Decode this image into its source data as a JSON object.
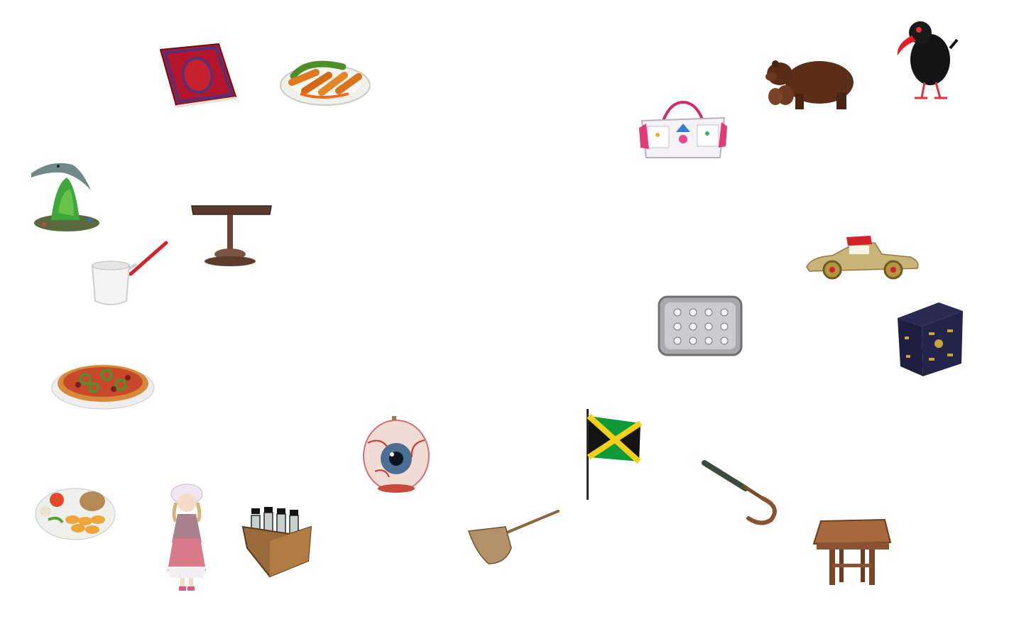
{
  "scene": {
    "objects": [
      {
        "id": "book",
        "icon": "red-book-icon"
      },
      {
        "id": "sausage-plate",
        "icon": "sausage-plate-icon"
      },
      {
        "id": "diaper-bag",
        "icon": "diaper-bag-icon"
      },
      {
        "id": "bear",
        "icon": "bear-with-cubs-icon"
      },
      {
        "id": "bird",
        "icon": "black-bird-icon"
      },
      {
        "id": "dolphin-figurine",
        "icon": "dolphin-figurine-icon"
      },
      {
        "id": "desk-lamp",
        "icon": "desk-lamp-icon"
      },
      {
        "id": "coffee-pot",
        "icon": "turkish-coffee-pot-icon"
      },
      {
        "id": "toy-car",
        "icon": "vintage-toy-car-icon"
      },
      {
        "id": "soap-dish",
        "icon": "soap-dish-icon"
      },
      {
        "id": "jewelry-chest",
        "icon": "jewelry-chest-icon"
      },
      {
        "id": "pizza",
        "icon": "pizza-icon"
      },
      {
        "id": "eyeball-model",
        "icon": "eyeball-model-icon"
      },
      {
        "id": "jamaica-flag",
        "icon": "jamaica-flag-icon"
      },
      {
        "id": "umbrella",
        "icon": "umbrella-icon"
      },
      {
        "id": "seafood-plate",
        "icon": "seafood-plate-icon"
      },
      {
        "id": "doll",
        "icon": "porcelain-doll-icon"
      },
      {
        "id": "bottle-crate",
        "icon": "bottle-crate-icon"
      },
      {
        "id": "shovel",
        "icon": "wooden-shovel-icon"
      },
      {
        "id": "stool",
        "icon": "wooden-stool-icon"
      }
    ]
  }
}
